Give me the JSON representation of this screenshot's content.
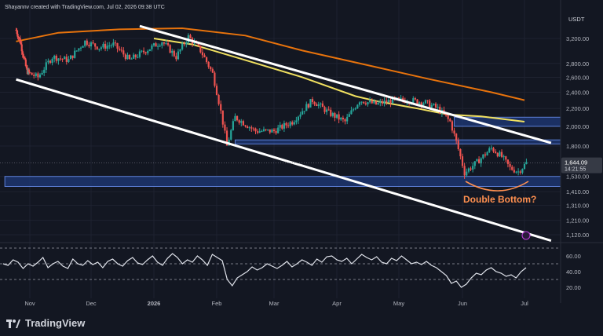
{
  "header": {
    "creator": "Shayannv created with TradingView.com, Jul 02, 2026 09:38 UTC"
  },
  "price_axis": {
    "currency": "USDT",
    "current_price": "1,644.09",
    "countdown": "14:21:55"
  },
  "annotation": {
    "label": "Double Bottom?"
  },
  "footer": {
    "brand": "TradingView"
  },
  "colors": {
    "background": "#131722",
    "grid": "#1e2230",
    "up": "#26a69a",
    "down": "#ef5350",
    "ma_orange": "#e8730c",
    "ma_yellow": "#f0e060",
    "channel": "#ffffff",
    "zone": "#1f3a7a",
    "annotation": "#ff9050",
    "rsi": "#e0e3eb"
  },
  "chart_data": [
    {
      "type": "candlestick",
      "title": "",
      "y_ticks": [
        3200,
        2800,
        2600,
        2400,
        2200,
        2000,
        1800,
        1530,
        1410,
        1310,
        1210,
        1120
      ],
      "y_tick_labels": [
        "3,200.00",
        "2,800.00",
        "2,600.00",
        "2,400.00",
        "2,200.00",
        "2,000.00",
        "1,800.00",
        "1,530.00",
        "1,410.00",
        "1,310.00",
        "1,210.00",
        "1,120.00"
      ],
      "x_tick_labels": [
        "Nov",
        "Dec",
        "2026",
        "Feb",
        "Mar",
        "Apr",
        "May",
        "Jun",
        "Jul"
      ],
      "scale": "log",
      "close_path": [
        [
          "2025-10-15",
          3350
        ],
        [
          "2025-10-20",
          3150
        ],
        [
          "2025-10-28",
          2700
        ],
        [
          "2025-11-05",
          2600
        ],
        [
          "2025-11-12",
          2900
        ],
        [
          "2025-11-20",
          2850
        ],
        [
          "2025-11-28",
          3150
        ],
        [
          "2025-12-05",
          3050
        ],
        [
          "2025-12-12",
          3100
        ],
        [
          "2025-12-20",
          2850
        ],
        [
          "2025-12-28",
          3000
        ],
        [
          "2026-01-05",
          3150
        ],
        [
          "2026-01-12",
          2900
        ],
        [
          "2026-01-18",
          3230
        ],
        [
          "2026-01-24",
          3000
        ],
        [
          "2026-01-30",
          2650
        ],
        [
          "2026-02-06",
          1800
        ],
        [
          "2026-02-10",
          2100
        ],
        [
          "2026-02-20",
          1950
        ],
        [
          "2026-03-01",
          1950
        ],
        [
          "2026-03-10",
          2050
        ],
        [
          "2026-03-20",
          2300
        ],
        [
          "2026-03-28",
          2150
        ],
        [
          "2026-04-05",
          2050
        ],
        [
          "2026-04-12",
          2300
        ],
        [
          "2026-04-20",
          2250
        ],
        [
          "2026-04-28",
          2300
        ],
        [
          "2026-05-06",
          2300
        ],
        [
          "2026-05-14",
          2270
        ],
        [
          "2026-05-20",
          2200
        ],
        [
          "2026-05-26",
          2050
        ],
        [
          "2026-06-02",
          1560
        ],
        [
          "2026-06-08",
          1650
        ],
        [
          "2026-06-15",
          1780
        ],
        [
          "2026-06-20",
          1700
        ],
        [
          "2026-06-24",
          1600
        ],
        [
          "2026-06-28",
          1570
        ],
        [
          "2026-07-02",
          1644
        ]
      ],
      "ma_orange": [
        [
          "2025-10-15",
          3150
        ],
        [
          "2025-11-15",
          3300
        ],
        [
          "2025-12-15",
          3360
        ],
        [
          "2026-01-15",
          3380
        ],
        [
          "2026-02-15",
          3250
        ],
        [
          "2026-03-15",
          3000
        ],
        [
          "2026-04-15",
          2780
        ],
        [
          "2026-05-15",
          2580
        ],
        [
          "2026-06-15",
          2400
        ],
        [
          "2026-07-01",
          2300
        ]
      ],
      "ma_yellow": [
        [
          "2026-01-01",
          3200
        ],
        [
          "2026-01-20",
          3100
        ],
        [
          "2026-02-15",
          2850
        ],
        [
          "2026-03-15",
          2600
        ],
        [
          "2026-04-10",
          2350
        ],
        [
          "2026-04-20",
          2290
        ],
        [
          "2026-05-10",
          2200
        ],
        [
          "2026-05-25",
          2130
        ],
        [
          "2026-06-10",
          2110
        ],
        [
          "2026-07-01",
          2050
        ]
      ],
      "channel_upper": [
        [
          "2025-12-25",
          3420
        ],
        [
          "2026-07-15",
          1830
        ]
      ],
      "channel_lower": [
        [
          "2025-10-15",
          2570
        ],
        [
          "2026-07-15",
          1085
        ]
      ],
      "zones": [
        {
          "from": 2000,
          "to": 2100,
          "start": "2026-05-28"
        },
        {
          "from": 1820,
          "to": 1860,
          "start": "2026-02-10"
        },
        {
          "from": 1450,
          "to": 1530,
          "start": "2025-10-01"
        }
      ],
      "current_price": 1644.09
    },
    {
      "type": "line",
      "title": "RSI",
      "y_ticks": [
        60,
        40,
        20
      ],
      "y_tick_labels": [
        "60.00",
        "40.00",
        "20.00"
      ],
      "bands": [
        70,
        50,
        30
      ],
      "series": [
        {
          "values": [
            50,
            48,
            55,
            52,
            44,
            50,
            47,
            52,
            58,
            45,
            50,
            53,
            47,
            44,
            56,
            50,
            48,
            54,
            49,
            52,
            45,
            53,
            56,
            50,
            47,
            54,
            58,
            51,
            49,
            55,
            60,
            52,
            48,
            57,
            63,
            58,
            50,
            55,
            52,
            60,
            55,
            48,
            62,
            58,
            54,
            30,
            22,
            32,
            36,
            40,
            46,
            42,
            45,
            50,
            47,
            44,
            48,
            53,
            46,
            50,
            55,
            52,
            48,
            56,
            52,
            59,
            60,
            55,
            53,
            57,
            50,
            56,
            62,
            58,
            55,
            59,
            52,
            50,
            57,
            54,
            60,
            55,
            50,
            52,
            49,
            53,
            48,
            45,
            40,
            35,
            25,
            28,
            20,
            24,
            32,
            38,
            36,
            42,
            45,
            40,
            38,
            34,
            36,
            32,
            40,
            45
          ]
        }
      ]
    }
  ]
}
